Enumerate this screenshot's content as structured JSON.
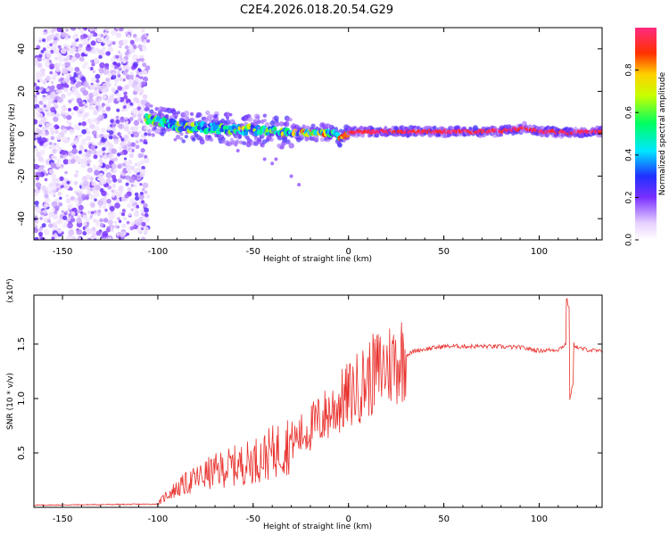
{
  "page_title": "C2E4.2026.018.20.54.G29",
  "chart_data": [
    {
      "type": "heatmap",
      "title": "C2E4.2026.018.20.54.G29",
      "xlabel": "Height of straight line (km)",
      "ylabel": "Frequency (Hz)",
      "xlim": [
        -165,
        133
      ],
      "ylim": [
        -50,
        50
      ],
      "xticks": [
        -150,
        -100,
        -50,
        0,
        50,
        100
      ],
      "yticks": [
        -40,
        -20,
        0,
        20,
        40
      ],
      "colorbar": {
        "label": "Normalized spectral amplitude",
        "range": [
          0.0,
          1.0
        ],
        "ticks": [
          0.0,
          0.2,
          0.4,
          0.6,
          0.8
        ]
      },
      "ridge": {
        "description_values_only": true,
        "x": [
          -105,
          -95,
          -85,
          -75,
          -65,
          -55,
          -45,
          -35,
          -25,
          -15,
          -8,
          -4,
          0,
          10,
          30,
          50,
          70,
          85,
          92,
          100,
          110,
          116,
          120,
          133
        ],
        "freq": [
          7,
          5,
          3,
          3,
          2,
          2,
          1.5,
          0.5,
          0.3,
          0.5,
          0.5,
          -2,
          0.5,
          1,
          1,
          1,
          1,
          1.5,
          3,
          1,
          1,
          0,
          1,
          1
        ]
      }
    },
    {
      "type": "line",
      "xlabel": "Height of straight line (km)",
      "ylabel": "SNR (10 * v/v)",
      "yscale_note": "(x10⁴)",
      "xlim": [
        -165,
        133
      ],
      "ylim": [
        0,
        1.95
      ],
      "xticks": [
        -150,
        -100,
        -50,
        0,
        50,
        100
      ],
      "yticks": [
        0.5,
        1.0,
        1.5
      ],
      "ytick_labels": [
        "0.5",
        "1.0",
        "1.5"
      ],
      "series": [
        {
          "name": "SNR",
          "color": "#e8302c",
          "envelope_x": [
            -165,
            -100,
            -95,
            -85,
            -75,
            -65,
            -55,
            -45,
            -35,
            -25,
            -15,
            -5,
            5,
            15,
            25,
            35,
            50,
            70,
            90,
            100,
            110,
            114,
            116,
            118,
            121,
            133
          ],
          "envelope_y": [
            0.02,
            0.03,
            0.12,
            0.22,
            0.3,
            0.36,
            0.4,
            0.46,
            0.55,
            0.66,
            0.8,
            0.95,
            1.1,
            1.25,
            1.35,
            1.44,
            1.48,
            1.48,
            1.47,
            1.44,
            1.45,
            1.5,
            1.35,
            1.5,
            1.46,
            1.43
          ]
        }
      ]
    }
  ]
}
